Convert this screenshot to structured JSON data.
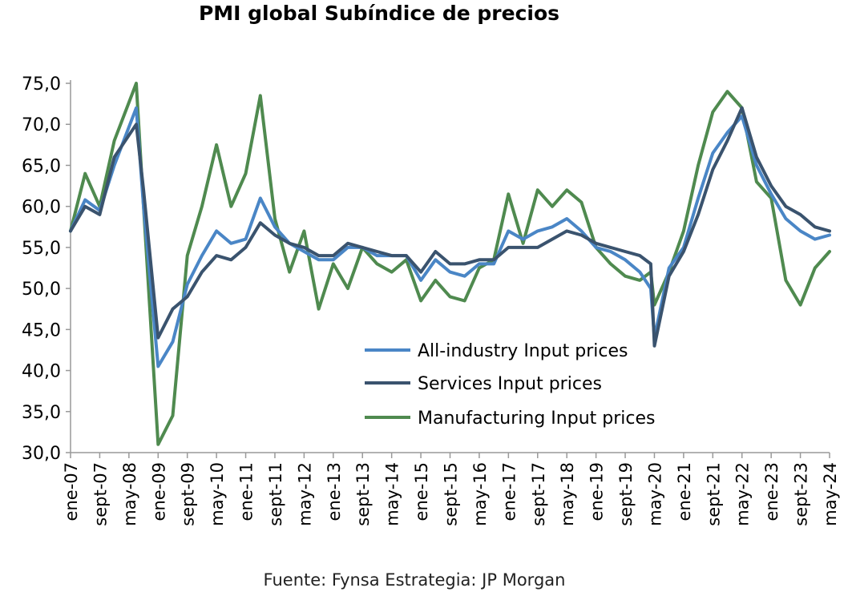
{
  "chart_data": {
    "type": "line",
    "title": "PMI global Subíndice de precios",
    "source": "Fuente: Fynsa Estrategia: JP Morgan",
    "xlabel": "",
    "ylabel": "",
    "ylim": [
      30,
      75
    ],
    "yticks": [
      "75,0",
      "70,0",
      "65,0",
      "60,0",
      "55,0",
      "50,0",
      "45,0",
      "40,0",
      "35,0",
      "30,0"
    ],
    "xticks": [
      "ene-07",
      "sept-07",
      "may-08",
      "ene-09",
      "sept-09",
      "may-10",
      "ene-11",
      "sept-11",
      "may-12",
      "ene-13",
      "sept-13",
      "may-14",
      "ene-15",
      "sept-15",
      "may-16",
      "ene-17",
      "sept-17",
      "may-18",
      "ene-19",
      "sept-19",
      "may-20",
      "ene-21",
      "sept-21",
      "may-22",
      "ene-23",
      "sept-23",
      "may-24"
    ],
    "x": [
      "ene-07",
      "may-07",
      "sept-07",
      "ene-08",
      "jul-08",
      "sept-08",
      "ene-09",
      "may-09",
      "sept-09",
      "ene-10",
      "may-10",
      "sept-10",
      "ene-11",
      "may-11",
      "sept-11",
      "ene-12",
      "may-12",
      "sept-12",
      "ene-13",
      "may-13",
      "sept-13",
      "ene-14",
      "may-14",
      "sept-14",
      "ene-15",
      "may-15",
      "sept-15",
      "ene-16",
      "may-16",
      "sept-16",
      "ene-17",
      "may-17",
      "sept-17",
      "ene-18",
      "may-18",
      "sept-18",
      "ene-19",
      "may-19",
      "sept-19",
      "ene-20",
      "abr-20",
      "may-20",
      "sept-20",
      "ene-21",
      "may-21",
      "sept-21",
      "ene-22",
      "may-22",
      "sept-22",
      "ene-23",
      "may-23",
      "sept-23",
      "ene-24",
      "may-24"
    ],
    "series": [
      {
        "name": "All-industry Input prices",
        "color": "#4a86c6",
        "values": [
          57.0,
          60.8,
          59.5,
          65.0,
          72.0,
          60.0,
          40.5,
          43.5,
          50.5,
          54.0,
          57.0,
          55.5,
          56.0,
          61.0,
          57.5,
          55.5,
          54.5,
          53.5,
          53.5,
          55.0,
          55.0,
          54.0,
          54.0,
          54.0,
          51.0,
          53.5,
          52.0,
          51.5,
          53.0,
          53.0,
          57.0,
          56.0,
          57.0,
          57.5,
          58.5,
          57.0,
          55.0,
          54.5,
          53.5,
          52.0,
          50.0,
          44.0,
          52.5,
          55.0,
          61.0,
          66.5,
          69.0,
          71.0,
          65.0,
          61.5,
          58.5,
          57.0,
          56.0,
          56.5
        ]
      },
      {
        "name": "Services Input prices",
        "color": "#3a536e",
        "values": [
          57.0,
          60.0,
          59.0,
          66.0,
          70.0,
          62.0,
          44.0,
          47.5,
          49.0,
          52.0,
          54.0,
          53.5,
          55.0,
          58.0,
          56.5,
          55.5,
          55.0,
          54.0,
          54.0,
          55.5,
          55.0,
          54.5,
          54.0,
          54.0,
          52.0,
          54.5,
          53.0,
          53.0,
          53.5,
          53.5,
          55.0,
          55.0,
          55.0,
          56.0,
          57.0,
          56.5,
          55.5,
          55.0,
          54.5,
          54.0,
          53.0,
          43.0,
          51.5,
          54.5,
          59.0,
          64.5,
          68.0,
          72.0,
          66.0,
          62.5,
          60.0,
          59.0,
          57.5,
          57.0
        ]
      },
      {
        "name": "Manufacturing Input prices",
        "color": "#4f8a4f",
        "values": [
          57.0,
          64.0,
          60.0,
          68.0,
          75.0,
          60.0,
          31.0,
          34.5,
          54.0,
          60.0,
          67.5,
          60.0,
          64.0,
          73.5,
          58.5,
          52.0,
          57.0,
          47.5,
          53.0,
          50.0,
          55.0,
          53.0,
          52.0,
          53.5,
          48.5,
          51.0,
          49.0,
          48.5,
          52.5,
          53.5,
          61.5,
          55.5,
          62.0,
          60.0,
          62.0,
          60.5,
          55.0,
          53.0,
          51.5,
          51.0,
          52.0,
          48.0,
          52.0,
          57.0,
          65.0,
          71.5,
          74.0,
          72.0,
          63.0,
          61.0,
          51.0,
          48.0,
          52.5,
          54.5
        ]
      }
    ],
    "legend": {
      "placement": "bottom-right",
      "entries": [
        "All-industry Input prices",
        "Services Input prices",
        "Manufacturing Input prices"
      ]
    },
    "grid": false
  }
}
